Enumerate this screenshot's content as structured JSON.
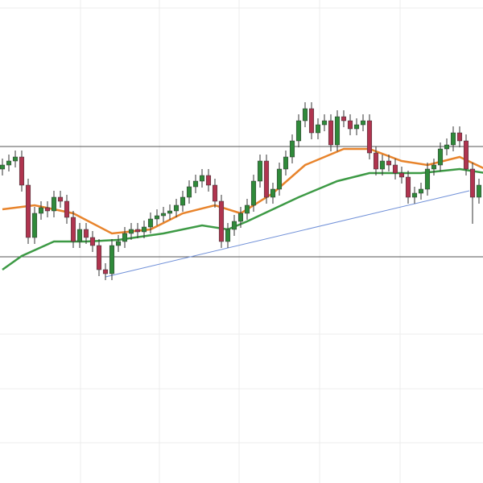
{
  "chart_data": {
    "type": "candlestick",
    "open": [
      390,
      395,
      400,
      405,
      370,
      305,
      335,
      342,
      338,
      355,
      350,
      330,
      300,
      315,
      305,
      295,
      265,
      260,
      295,
      300,
      310,
      315,
      312,
      318,
      328,
      332,
      335,
      338,
      345,
      355,
      368,
      375,
      382,
      370,
      350,
      300,
      315,
      325,
      335,
      345,
      375,
      400,
      355,
      365,
      390,
      405,
      425,
      450,
      465,
      435,
      445,
      450,
      420,
      455,
      450,
      440,
      445,
      450,
      410,
      390,
      400,
      395,
      385,
      380,
      355,
      360,
      365,
      390,
      395,
      415,
      420,
      435,
      425,
      390,
      355
    ],
    "high": [
      403,
      408,
      413,
      413,
      378,
      343,
      350,
      350,
      363,
      363,
      358,
      338,
      323,
      323,
      313,
      303,
      273,
      303,
      308,
      318,
      323,
      323,
      326,
      336,
      340,
      343,
      346,
      353,
      363,
      376,
      383,
      390,
      390,
      378,
      358,
      323,
      333,
      343,
      353,
      383,
      408,
      408,
      373,
      398,
      413,
      433,
      458,
      473,
      473,
      453,
      458,
      458,
      463,
      463,
      458,
      453,
      458,
      458,
      418,
      408,
      408,
      403,
      393,
      388,
      368,
      373,
      398,
      403,
      423,
      428,
      443,
      443,
      433,
      398,
      378
    ],
    "low": [
      382,
      387,
      392,
      362,
      297,
      297,
      327,
      330,
      330,
      342,
      322,
      292,
      292,
      297,
      287,
      257,
      252,
      252,
      287,
      292,
      302,
      304,
      304,
      310,
      320,
      324,
      327,
      330,
      337,
      347,
      360,
      367,
      362,
      342,
      292,
      292,
      307,
      317,
      327,
      337,
      367,
      347,
      347,
      357,
      382,
      397,
      417,
      442,
      427,
      427,
      437,
      412,
      412,
      442,
      432,
      432,
      437,
      402,
      382,
      382,
      387,
      377,
      372,
      347,
      347,
      352,
      357,
      382,
      387,
      407,
      412,
      417,
      382,
      322,
      347
    ],
    "close": [
      395,
      400,
      405,
      370,
      305,
      335,
      342,
      338,
      355,
      350,
      330,
      300,
      315,
      305,
      295,
      265,
      260,
      295,
      300,
      310,
      315,
      312,
      318,
      328,
      332,
      335,
      338,
      345,
      355,
      368,
      375,
      382,
      370,
      350,
      300,
      315,
      325,
      335,
      345,
      375,
      400,
      355,
      365,
      390,
      405,
      425,
      450,
      465,
      435,
      445,
      450,
      420,
      455,
      450,
      440,
      445,
      450,
      410,
      390,
      400,
      395,
      385,
      380,
      355,
      360,
      365,
      390,
      395,
      415,
      420,
      435,
      425,
      390,
      355,
      370
    ],
    "up_color": "#2f8a3a",
    "down_color": "#b0344f",
    "lines": [
      {
        "color": "#e8842c",
        "x": [
          0,
          5,
          11,
          17,
          23,
          28,
          33,
          37,
          42,
          47,
          53,
          57,
          62,
          66,
          71,
          75
        ],
        "values": [
          340,
          345,
          335,
          310,
          315,
          335,
          345,
          335,
          360,
          395,
          415,
          415,
          400,
          395,
          405,
          390
        ]
      },
      {
        "color": "#3d9a45",
        "x": [
          0,
          3,
          8,
          13,
          18,
          25,
          31,
          35,
          38,
          46,
          52,
          57,
          65,
          71,
          75
        ],
        "values": [
          265,
          282,
          300,
          300,
          302,
          310,
          320,
          315,
          325,
          355,
          375,
          385,
          385,
          390,
          385
        ]
      }
    ],
    "hlines": [
      418,
      281
    ],
    "trend": {
      "color": "#7090d8",
      "x": [
        16,
        72.5
      ],
      "values": [
        256,
        363
      ]
    },
    "xlim": [
      -0.375,
      74.625
    ],
    "ylim": [
      0,
      600
    ],
    "xticks": [
      12.125,
      24.375,
      36.75,
      49.25,
      61.75
    ],
    "yticks": [
      590,
      185,
      117,
      50
    ],
    "grid": true
  }
}
